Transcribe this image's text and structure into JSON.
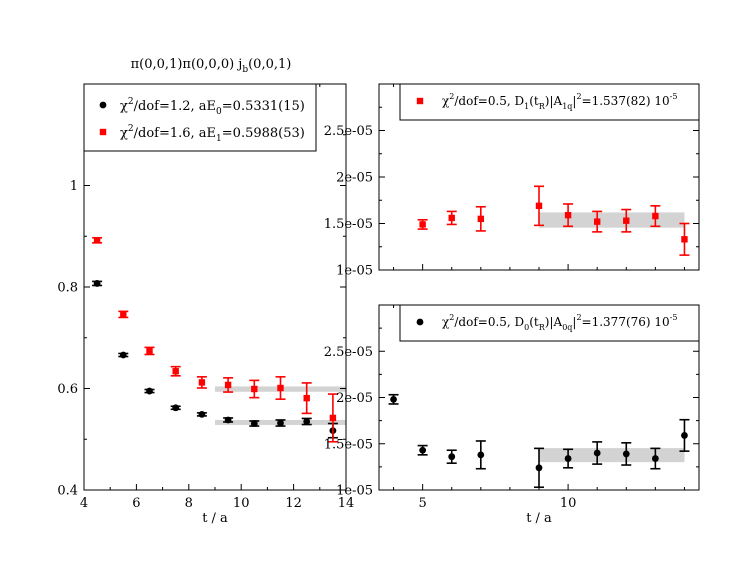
{
  "colors": {
    "black": "#000000",
    "red": "#ff0000",
    "band": "#d3d3d3"
  },
  "chart_data": [
    {
      "id": "left",
      "type": "scatter",
      "title": "π(0,0,1)π(0,0,0)  jᵦ(0,0,1)",
      "title_main": "π(0,0,1)π(0,0,0)  j",
      "title_sub": "b",
      "title_tail": "(0,0,1)",
      "xlabel": "t / a",
      "ylabel": "",
      "xlim": [
        4,
        14
      ],
      "ylim": [
        0.4,
        1.2
      ],
      "xticks": [
        4,
        6,
        8,
        10,
        12,
        14
      ],
      "xtick_labels": [
        "4",
        "6",
        "8",
        "10",
        "12",
        "14"
      ],
      "yticks": [
        0.4,
        0.6,
        0.8,
        1.0
      ],
      "ytick_labels": [
        "0.4",
        "0.6",
        "0.8",
        "1"
      ],
      "legend_position": "top-left",
      "series": [
        {
          "name": "χ²/dof=1.2,  aE₀=0.5331(15)",
          "legend_parts": [
            "χ",
            "2",
            "/dof=1.2,  aE",
            "0",
            "=0.5331(15)"
          ],
          "color": "#000000",
          "marker": "circle",
          "x": [
            4.5,
            5.5,
            6.5,
            7.5,
            8.5,
            9.5,
            10.5,
            11.5,
            12.5,
            13.5
          ],
          "y": [
            0.807,
            0.666,
            0.595,
            0.562,
            0.549,
            0.538,
            0.531,
            0.532,
            0.535,
            0.517
          ],
          "err": [
            0.004,
            0.003,
            0.003,
            0.003,
            0.003,
            0.004,
            0.005,
            0.006,
            0.006,
            0.014
          ],
          "fit_band": {
            "x": [
              9,
              14
            ],
            "y": 0.5331,
            "err": 0.0015
          }
        },
        {
          "name": "χ²/dof=1.6,  aE₁=0.5988(53)",
          "legend_parts": [
            "χ",
            "2",
            "/dof=1.6,  aE",
            "1",
            "=0.5988(53)"
          ],
          "color": "#ff0000",
          "marker": "square",
          "x": [
            4.5,
            5.5,
            6.5,
            7.5,
            8.5,
            9.5,
            10.5,
            11.5,
            12.5,
            13.5
          ],
          "y": [
            0.892,
            0.746,
            0.674,
            0.634,
            0.612,
            0.607,
            0.599,
            0.601,
            0.581,
            0.542
          ],
          "err": [
            0.005,
            0.006,
            0.007,
            0.009,
            0.011,
            0.014,
            0.017,
            0.022,
            0.03,
            0.047
          ],
          "fit_band": {
            "x": [
              9,
              14
            ],
            "y": 0.5988,
            "err": 0.0053
          }
        }
      ]
    },
    {
      "id": "top-right",
      "type": "scatter",
      "title": "",
      "xlabel": "",
      "ylabel": "",
      "xlim": [
        3.5,
        14.5
      ],
      "ylim": [
        1e-05,
        3e-05
      ],
      "xticks": [
        5,
        10
      ],
      "xtick_labels": [
        "",
        ""
      ],
      "yticks": [
        1e-05,
        1.5e-05,
        2e-05,
        2.5e-05
      ],
      "ytick_labels": [
        "1e-05",
        "1.5e-05",
        "2e-05",
        "2.5e-05"
      ],
      "legend_position": "top",
      "series": [
        {
          "name": "χ²/dof=0.5, D₁(tᵣ)|A₁q|²=1.537(82) 10⁻⁵",
          "legend_parts": [
            "χ",
            "2",
            "/dof=0.5, D",
            "1",
            "(t",
            "R",
            ")|A",
            "1q",
            "|",
            "2",
            "=1.537(82) 10",
            "-5"
          ],
          "color": "#ff0000",
          "marker": "square",
          "x": [
            5,
            6,
            7,
            9,
            10,
            11,
            12,
            13,
            14
          ],
          "y": [
            1.49e-05,
            1.56e-05,
            1.55e-05,
            1.69e-05,
            1.59e-05,
            1.52e-05,
            1.53e-05,
            1.58e-05,
            1.33e-05
          ],
          "err": [
            5e-07,
            7e-07,
            1.3e-06,
            2.1e-06,
            1.2e-06,
            1.1e-06,
            1.2e-06,
            1.1e-06,
            1.7e-06
          ],
          "fit_band": {
            "x": [
              9,
              14
            ],
            "y": 1.537e-05,
            "err": 8.2e-07
          }
        }
      ]
    },
    {
      "id": "bottom-right",
      "type": "scatter",
      "title": "",
      "xlabel": "t / a",
      "ylabel": "",
      "xlim": [
        3.5,
        14.5
      ],
      "ylim": [
        1e-05,
        3e-05
      ],
      "xticks": [
        5,
        10
      ],
      "xtick_labels": [
        "5",
        "10"
      ],
      "yticks": [
        1e-05,
        1.5e-05,
        2e-05,
        2.5e-05
      ],
      "ytick_labels": [
        "1e-05",
        "1.5e-05",
        "2e-05",
        "2.5e-05"
      ],
      "legend_position": "top",
      "series": [
        {
          "name": "χ²/dof=0.5, D₀(tᵣ)|A₀q|²=1.377(76) 10⁻⁵",
          "legend_parts": [
            "χ",
            "2",
            "/dof=0.5, D",
            "0",
            "(t",
            "R",
            ")|A",
            "0q",
            "|",
            "2",
            "=1.377(76) 10",
            "-5"
          ],
          "color": "#000000",
          "marker": "circle",
          "x": [
            4,
            5,
            6,
            7,
            9,
            10,
            11,
            12,
            13,
            14
          ],
          "y": [
            1.98e-05,
            1.43e-05,
            1.36e-05,
            1.38e-05,
            1.24e-05,
            1.34e-05,
            1.4e-05,
            1.39e-05,
            1.34e-05,
            1.59e-05
          ],
          "err": [
            5e-07,
            5e-07,
            7e-07,
            1.5e-06,
            2.1e-06,
            1e-06,
            1.2e-06,
            1.2e-06,
            1.1e-06,
            1.7e-06
          ],
          "fit_band": {
            "x": [
              9,
              14
            ],
            "y": 1.377e-05,
            "err": 7.6e-07
          }
        }
      ]
    }
  ]
}
